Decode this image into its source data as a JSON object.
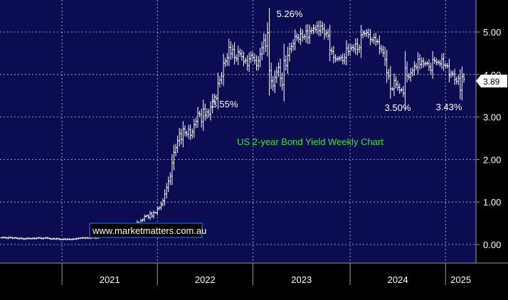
{
  "chart_data": {
    "type": "ohlc",
    "x_unit": "week",
    "ylabel": "",
    "ylim": [
      -0.3,
      5.65
    ],
    "yticks": [
      "0.00",
      "1.00",
      "2.00",
      "3.00",
      "4.00",
      "5.00"
    ],
    "ytick_values": [
      0,
      1,
      2,
      3,
      4,
      5
    ],
    "xticks": [
      "2021",
      "2022",
      "2023",
      "2024",
      "2025"
    ],
    "xtick_start_weeks": [
      33,
      85,
      137,
      190,
      242
    ],
    "grid": true,
    "last_price_label": "3.89",
    "last_value": 3.89,
    "annotations": {
      "peak": "5.26%",
      "low_2023": "3.55%",
      "low_2024": "3.50%",
      "low_2025": "3.43%",
      "chart_title": "US 2-year Bond Yield Weekly Chart",
      "watermark": "www.marketmatters.com.au"
    },
    "series": [
      {
        "closes": [
          0.16,
          0.17,
          0.16,
          0.15,
          0.17,
          0.16,
          0.15,
          0.16,
          0.15,
          0.14,
          0.15,
          0.14,
          0.13,
          0.14,
          0.15,
          0.14,
          0.14,
          0.15,
          0.14,
          0.15,
          0.16,
          0.15,
          0.14,
          0.15,
          0.16,
          0.15,
          0.14,
          0.13,
          0.14,
          0.13,
          0.14,
          0.13,
          0.12,
          0.12,
          0.13,
          0.12,
          0.13,
          0.12,
          0.12,
          0.13,
          0.13,
          0.14,
          0.15,
          0.15,
          0.16,
          0.15,
          0.16,
          0.15,
          0.15,
          0.16,
          0.16,
          0.15,
          0.16,
          0.2,
          0.21,
          0.25,
          0.23,
          0.24,
          0.21,
          0.22,
          0.23,
          0.22,
          0.22,
          0.23,
          0.22,
          0.21,
          0.23,
          0.27,
          0.28,
          0.33,
          0.4,
          0.42,
          0.45,
          0.44,
          0.52,
          0.5,
          0.56,
          0.59,
          0.66,
          0.68,
          0.64,
          0.73,
          0.67,
          0.75,
          0.75,
          0.84,
          0.87,
          0.95,
          1.03,
          1.19,
          1.34,
          1.49,
          1.61,
          1.92,
          2.17,
          2.28,
          2.44,
          2.61,
          2.47,
          2.72,
          2.63,
          2.59,
          2.71,
          2.57,
          2.65,
          2.82,
          2.9,
          3.09,
          3.06,
          2.89,
          3.19,
          3.04,
          3.12,
          3.06,
          3.23,
          3.4,
          3.47,
          3.44,
          3.79,
          3.87,
          3.96,
          4.26,
          4.31,
          4.4,
          4.64,
          4.49,
          4.59,
          4.4,
          4.37,
          4.53,
          4.49,
          4.42,
          4.31,
          4.33,
          4.21,
          4.37,
          4.45,
          4.4,
          4.33,
          4.21,
          4.32,
          4.48,
          4.63,
          4.81,
          4.67,
          4.98,
          4.09,
          3.85,
          3.73,
          3.93,
          4.06,
          4.17,
          3.91,
          3.76,
          4.33,
          4.21,
          4.45,
          4.6,
          4.66,
          4.73,
          4.9,
          4.87,
          4.83,
          4.96,
          4.88,
          4.89,
          5.03,
          4.87,
          5.02,
          5.04,
          5.09,
          5.06,
          5.14,
          5.03,
          5.14,
          5.07,
          4.95,
          4.98,
          4.91,
          4.57,
          4.54,
          4.4,
          4.36,
          4.37,
          4.38,
          4.4,
          4.33,
          4.4,
          4.62,
          4.54,
          4.62,
          4.64,
          4.6,
          4.72,
          4.59,
          4.63,
          4.93,
          4.97,
          4.96,
          4.99,
          4.94,
          4.82,
          4.81,
          4.87,
          4.78,
          4.77,
          4.62,
          4.58,
          4.51,
          4.35,
          4.04,
          3.97,
          3.66,
          3.66,
          3.86,
          3.77,
          3.7,
          3.63,
          3.64,
          3.56,
          4.15,
          3.97,
          3.94,
          4.04,
          4.09,
          4.2,
          4.17,
          4.36,
          4.24,
          4.31,
          4.25,
          4.26,
          4.26,
          4.18,
          4.1,
          4.35,
          4.32,
          4.29,
          4.28,
          4.25,
          4.37,
          4.22,
          4.21,
          4.2,
          3.99,
          4.03,
          4.01,
          3.88,
          3.84,
          3.91,
          3.63,
          3.95,
          3.89
        ]
      }
    ]
  }
}
